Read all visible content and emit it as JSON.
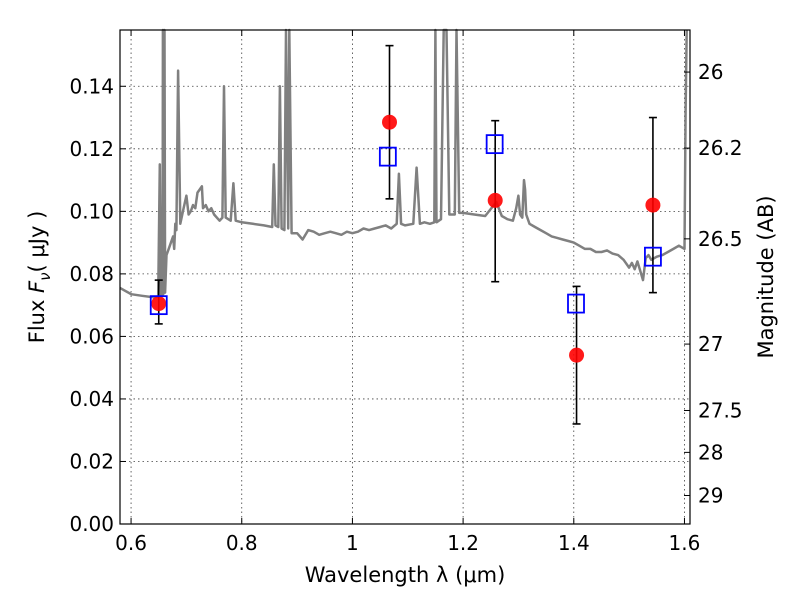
{
  "chart_data": {
    "type": "scatter",
    "xlabel": "Wavelength  λ (μm)",
    "ylabel": "Flux  F_ν  ( μJy )",
    "ylabel_parts": {
      "prefix": "Flux ",
      "symbol": "F",
      "subscript": "ν",
      "unit": "( μJy )"
    },
    "y2label": "Magnitude (AB)",
    "xlim": [
      0.58,
      1.61
    ],
    "ylim": [
      0.0,
      0.158
    ],
    "grid": true,
    "x_ticks": [
      {
        "value": 0.6,
        "label": "0.6"
      },
      {
        "value": 0.8,
        "label": "0.8"
      },
      {
        "value": 1.0,
        "label": "1"
      },
      {
        "value": 1.2,
        "label": "1.2"
      },
      {
        "value": 1.4,
        "label": "1.4"
      },
      {
        "value": 1.6,
        "label": "1.6"
      }
    ],
    "y_ticks": [
      {
        "value": 0.0,
        "label": "0.00"
      },
      {
        "value": 0.02,
        "label": "0.02"
      },
      {
        "value": 0.04,
        "label": "0.04"
      },
      {
        "value": 0.06,
        "label": "0.06"
      },
      {
        "value": 0.08,
        "label": "0.08"
      },
      {
        "value": 0.1,
        "label": "0.10"
      },
      {
        "value": 0.12,
        "label": "0.12"
      },
      {
        "value": 0.14,
        "label": "0.14"
      }
    ],
    "mag_ticks": [
      {
        "value": 26,
        "label": "26"
      },
      {
        "value": 26.2,
        "label": "26.2"
      },
      {
        "value": 26.5,
        "label": "26.5"
      },
      {
        "value": 27,
        "label": "27"
      },
      {
        "value": 27.5,
        "label": "27.5"
      },
      {
        "value": 28,
        "label": "28"
      },
      {
        "value": 29,
        "label": "29"
      }
    ],
    "series": [
      {
        "kind": "template_spectrum",
        "color": "#808080",
        "points": [
          [
            0.58,
            0.0755
          ],
          [
            0.6,
            0.0735
          ],
          [
            0.62,
            0.073
          ],
          [
            0.64,
            0.0725
          ],
          [
            0.649,
            0.0728
          ],
          [
            0.652,
            0.115
          ],
          [
            0.654,
            0.0732
          ],
          [
            0.657,
            0.0735
          ],
          [
            0.6575,
            0.158
          ],
          [
            0.658,
            0.0735
          ],
          [
            0.659,
            0.074
          ],
          [
            0.6605,
            0.158
          ],
          [
            0.6615,
            0.074
          ],
          [
            0.664,
            0.086
          ],
          [
            0.668,
            0.088
          ],
          [
            0.672,
            0.09
          ],
          [
            0.676,
            0.092
          ],
          [
            0.678,
            0.088
          ],
          [
            0.68,
            0.096
          ],
          [
            0.682,
            0.094
          ],
          [
            0.685,
            0.145
          ],
          [
            0.689,
            0.096
          ],
          [
            0.695,
            0.101
          ],
          [
            0.7,
            0.105
          ],
          [
            0.704,
            0.099
          ],
          [
            0.708,
            0.1
          ],
          [
            0.712,
            0.102
          ],
          [
            0.716,
            0.101
          ],
          [
            0.72,
            0.106
          ],
          [
            0.724,
            0.107
          ],
          [
            0.728,
            0.108
          ],
          [
            0.73,
            0.101
          ],
          [
            0.735,
            0.102
          ],
          [
            0.74,
            0.1
          ],
          [
            0.745,
            0.101
          ],
          [
            0.75,
            0.099
          ],
          [
            0.755,
            0.098
          ],
          [
            0.76,
            0.097
          ],
          [
            0.765,
            0.098
          ],
          [
            0.768,
            0.14
          ],
          [
            0.771,
            0.098
          ],
          [
            0.78,
            0.097
          ],
          [
            0.785,
            0.109
          ],
          [
            0.789,
            0.097
          ],
          [
            0.8,
            0.0965
          ],
          [
            0.82,
            0.096
          ],
          [
            0.84,
            0.0955
          ],
          [
            0.855,
            0.095
          ],
          [
            0.858,
            0.115
          ],
          [
            0.861,
            0.0955
          ],
          [
            0.866,
            0.095
          ],
          [
            0.869,
            0.14
          ],
          [
            0.872,
            0.0945
          ],
          [
            0.877,
            0.094
          ],
          [
            0.88,
            0.158
          ],
          [
            0.884,
            0.0945
          ],
          [
            0.886,
            0.158
          ],
          [
            0.89,
            0.093
          ],
          [
            0.9,
            0.093
          ],
          [
            0.91,
            0.091
          ],
          [
            0.92,
            0.094
          ],
          [
            0.93,
            0.0935
          ],
          [
            0.94,
            0.0925
          ],
          [
            0.95,
            0.093
          ],
          [
            0.96,
            0.0935
          ],
          [
            0.97,
            0.093
          ],
          [
            0.98,
            0.0925
          ],
          [
            0.99,
            0.0935
          ],
          [
            1.0,
            0.093
          ],
          [
            1.01,
            0.0935
          ],
          [
            1.02,
            0.0945
          ],
          [
            1.03,
            0.094
          ],
          [
            1.04,
            0.0945
          ],
          [
            1.05,
            0.095
          ],
          [
            1.06,
            0.0955
          ],
          [
            1.07,
            0.0945
          ],
          [
            1.08,
            0.096
          ],
          [
            1.084,
            0.112
          ],
          [
            1.088,
            0.096
          ],
          [
            1.095,
            0.0955
          ],
          [
            1.11,
            0.096
          ],
          [
            1.116,
            0.114
          ],
          [
            1.122,
            0.096
          ],
          [
            1.13,
            0.0965
          ],
          [
            1.14,
            0.096
          ],
          [
            1.148,
            0.0965
          ],
          [
            1.15,
            0.158
          ],
          [
            1.152,
            0.0965
          ],
          [
            1.16,
            0.0975
          ],
          [
            1.165,
            0.158
          ],
          [
            1.17,
            0.158
          ],
          [
            1.175,
            0.099
          ],
          [
            1.185,
            0.099
          ],
          [
            1.188,
            0.158
          ],
          [
            1.193,
            0.0995
          ],
          [
            1.2,
            0.0995
          ],
          [
            1.22,
            0.099
          ],
          [
            1.24,
            0.0985
          ],
          [
            1.26,
            0.103
          ],
          [
            1.27,
            0.0985
          ],
          [
            1.28,
            0.0975
          ],
          [
            1.29,
            0.097
          ],
          [
            1.296,
            0.101
          ],
          [
            1.3,
            0.105
          ],
          [
            1.303,
            0.099
          ],
          [
            1.307,
            0.098
          ],
          [
            1.31,
            0.11
          ],
          [
            1.312,
            0.107
          ],
          [
            1.314,
            0.099
          ],
          [
            1.32,
            0.096
          ],
          [
            1.33,
            0.095
          ],
          [
            1.34,
            0.094
          ],
          [
            1.35,
            0.093
          ],
          [
            1.36,
            0.092
          ],
          [
            1.37,
            0.0915
          ],
          [
            1.38,
            0.091
          ],
          [
            1.39,
            0.0905
          ],
          [
            1.4,
            0.09
          ],
          [
            1.41,
            0.089
          ],
          [
            1.42,
            0.088
          ],
          [
            1.43,
            0.088
          ],
          [
            1.44,
            0.087
          ],
          [
            1.45,
            0.087
          ],
          [
            1.46,
            0.0875
          ],
          [
            1.47,
            0.0865
          ],
          [
            1.48,
            0.086
          ],
          [
            1.49,
            0.0845
          ],
          [
            1.5,
            0.082
          ],
          [
            1.505,
            0.0835
          ],
          [
            1.51,
            0.0815
          ],
          [
            1.515,
            0.084
          ],
          [
            1.52,
            0.081
          ],
          [
            1.525,
            0.078
          ],
          [
            1.53,
            0.085
          ],
          [
            1.535,
            0.086
          ],
          [
            1.54,
            0.0845
          ],
          [
            1.55,
            0.0855
          ],
          [
            1.56,
            0.086
          ],
          [
            1.57,
            0.087
          ],
          [
            1.58,
            0.088
          ],
          [
            1.59,
            0.089
          ],
          [
            1.6,
            0.088
          ],
          [
            1.602,
            0.132
          ],
          [
            1.604,
            0.158
          ]
        ]
      },
      {
        "kind": "observed_flux",
        "marker": "filled-circle",
        "color": "#ff0000",
        "points": [
          {
            "x": 0.65,
            "y": 0.0705,
            "err_low": 0.064,
            "err_high": 0.078
          },
          {
            "x": 1.067,
            "y": 0.1285,
            "err_low": 0.104,
            "err_high": 0.153
          },
          {
            "x": 1.258,
            "y": 0.1035,
            "err_low": 0.0775,
            "err_high": 0.129
          },
          {
            "x": 1.405,
            "y": 0.054,
            "err_low": 0.032,
            "err_high": 0.076
          },
          {
            "x": 1.543,
            "y": 0.102,
            "err_low": 0.074,
            "err_high": 0.13
          }
        ]
      },
      {
        "kind": "model_flux",
        "marker": "open-square",
        "color": "#0000ff",
        "points": [
          {
            "x": 0.65,
            "y": 0.07
          },
          {
            "x": 1.064,
            "y": 0.1175
          },
          {
            "x": 1.257,
            "y": 0.1215
          },
          {
            "x": 1.404,
            "y": 0.0705
          },
          {
            "x": 1.543,
            "y": 0.0855
          }
        ]
      }
    ]
  }
}
